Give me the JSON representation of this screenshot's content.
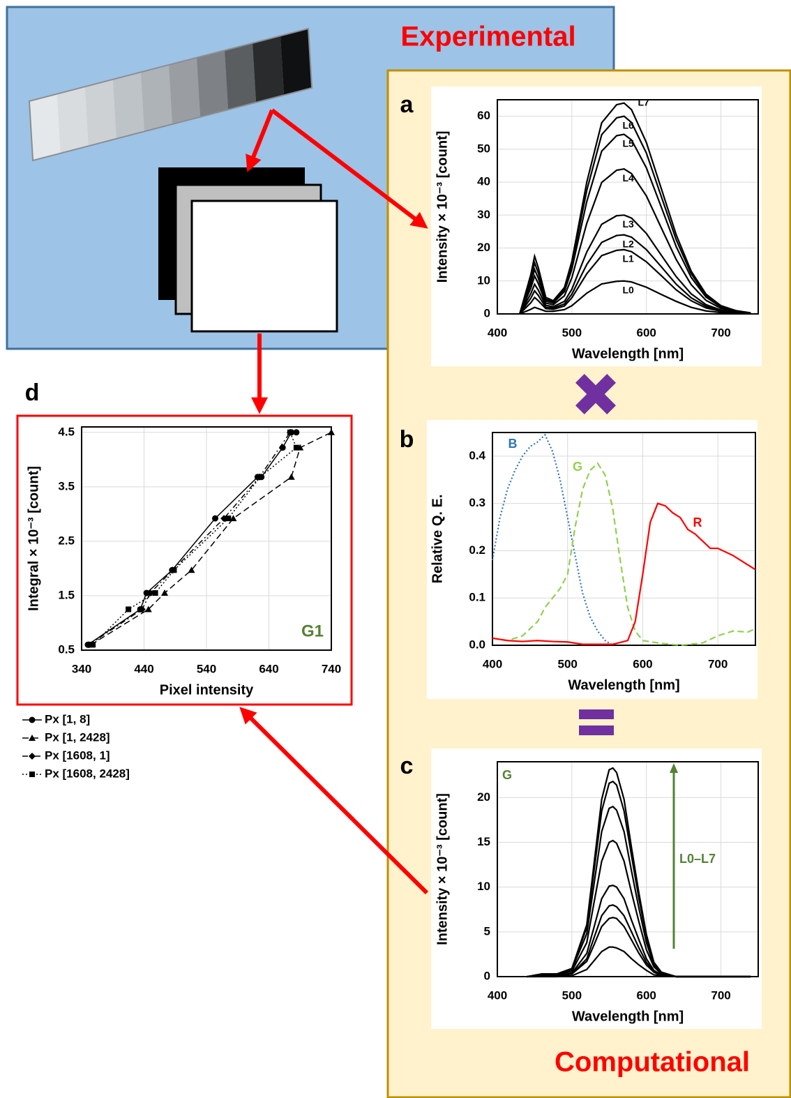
{
  "labels": {
    "experimental": "Experimental",
    "computational": "Computational",
    "panels": [
      "a",
      "b",
      "c",
      "d"
    ]
  },
  "chart_data": [
    {
      "type": "line",
      "xlabel": "Wavelength [nm]",
      "ylabel": "Intensity × 10⁻³ [count]",
      "xlim": [
        400,
        750
      ],
      "ylim": [
        0,
        65
      ],
      "xticks": [
        400,
        500,
        600,
        700
      ],
      "yticks": [
        0,
        10,
        20,
        30,
        40,
        50,
        60
      ],
      "grid": true,
      "x": [
        430,
        445,
        450,
        455,
        465,
        475,
        490,
        500,
        520,
        540,
        560,
        570,
        580,
        600,
        620,
        640,
        660,
        680,
        700,
        720,
        740
      ],
      "series": [
        {
          "name": "L0",
          "color": "#000000",
          "values": [
            0,
            1.4,
            2,
            1.6,
            0.8,
            0.8,
            1.3,
            2.5,
            6.3,
            9.1,
            9.9,
            10,
            9.7,
            8.1,
            5.9,
            3.8,
            2,
            0.9,
            0.4,
            0.2,
            0
          ]
        },
        {
          "name": "L1",
          "color": "#000000",
          "values": [
            0,
            3.4,
            5,
            4,
            1.6,
            1.4,
            2.4,
            4.9,
            12.2,
            17.7,
            19.3,
            19.5,
            18.9,
            15.8,
            11.6,
            7.3,
            4,
            1.8,
            0.8,
            0.3,
            0.1
          ]
        },
        {
          "name": "L2",
          "color": "#000000",
          "values": [
            0,
            4.8,
            7,
            5.6,
            2,
            1.8,
            3,
            6,
            15,
            21.7,
            23.8,
            24,
            23.3,
            19.5,
            14.3,
            9,
            4.9,
            2.3,
            0.9,
            0.4,
            0.1
          ]
        },
        {
          "name": "L3",
          "color": "#000000",
          "values": [
            0,
            6.2,
            9,
            7.2,
            2.6,
            2.2,
            3.8,
            7.5,
            18.8,
            27.2,
            29.8,
            30,
            29.1,
            24.4,
            17.8,
            11.3,
            6.1,
            2.8,
            1.2,
            0.5,
            0.2
          ]
        },
        {
          "name": "L4",
          "color": "#000000",
          "values": [
            0,
            7.9,
            11.5,
            9.2,
            3.3,
            2.8,
            5.5,
            11,
            27.5,
            39.9,
            43.6,
            44,
            42.6,
            35.8,
            26.1,
            16.5,
            8.9,
            4.1,
            1.7,
            0.7,
            0.2
          ]
        },
        {
          "name": "L5",
          "color": "#000000",
          "values": [
            0,
            9.3,
            13.5,
            10.8,
            3.9,
            3.3,
            6.8,
            13.6,
            34.1,
            49.4,
            54.1,
            54.5,
            52.8,
            44.3,
            32.4,
            20.4,
            11.1,
            5.1,
            2.1,
            0.9,
            0.3
          ]
        },
        {
          "name": "L6",
          "color": "#000000",
          "values": [
            0,
            10.6,
            15.5,
            12.4,
            4.4,
            3.7,
            7.5,
            15,
            37.5,
            54.4,
            59.5,
            60,
            58.1,
            48.8,
            35.6,
            22.5,
            12.2,
            5.6,
            2.3,
            1,
            0.3
          ]
        },
        {
          "name": "L7",
          "color": "#000000",
          "values": [
            0,
            12,
            17.5,
            14,
            5,
            4,
            8,
            16,
            40,
            58,
            63.5,
            64,
            62,
            52,
            38,
            24,
            13,
            6,
            2.5,
            1,
            0.3
          ]
        }
      ]
    },
    {
      "type": "line",
      "xlabel": "Wavelength [nm]",
      "ylabel": "Relative Q. E.",
      "xlim": [
        400,
        750
      ],
      "ylim": [
        0,
        0.45
      ],
      "xticks": [
        400,
        500,
        600,
        700
      ],
      "yticks": [
        {
          "value": 0,
          "label": "0.0"
        },
        0.1,
        0.2,
        0.3,
        0.4
      ],
      "grid": true,
      "series": [
        {
          "name": "B",
          "color": "#2e75b6",
          "dash": "dotted",
          "x": [
            400,
            410,
            420,
            430,
            440,
            450,
            460,
            470,
            480,
            490,
            500,
            510,
            520,
            530,
            540,
            550,
            560
          ],
          "values": [
            0.18,
            0.27,
            0.33,
            0.37,
            0.4,
            0.42,
            0.43,
            0.445,
            0.41,
            0.35,
            0.27,
            0.19,
            0.11,
            0.06,
            0.03,
            0.01,
            0
          ]
        },
        {
          "name": "G",
          "color": "#92d050",
          "dash": "dashed",
          "x": [
            400,
            420,
            440,
            460,
            470,
            480,
            490,
            500,
            510,
            520,
            530,
            540,
            550,
            560,
            570,
            580,
            590,
            600,
            620,
            650,
            680,
            700,
            720,
            740,
            750
          ],
          "values": [
            0.015,
            0.01,
            0.02,
            0.05,
            0.08,
            0.1,
            0.12,
            0.15,
            0.25,
            0.33,
            0.37,
            0.385,
            0.36,
            0.29,
            0.18,
            0.08,
            0.03,
            0.01,
            0.005,
            0,
            0.005,
            0.02,
            0.03,
            0.028,
            0.035
          ]
        },
        {
          "name": "R",
          "color": "#ff0000",
          "dash": "solid",
          "x": [
            400,
            420,
            440,
            460,
            480,
            500,
            520,
            540,
            560,
            580,
            590,
            600,
            610,
            620,
            630,
            640,
            650,
            660,
            670,
            680,
            690,
            700,
            720,
            740,
            750
          ],
          "values": [
            0.015,
            0.01,
            0.008,
            0.01,
            0.008,
            0.007,
            0.002,
            0.002,
            0.002,
            0.01,
            0.05,
            0.15,
            0.26,
            0.3,
            0.295,
            0.28,
            0.27,
            0.245,
            0.235,
            0.22,
            0.205,
            0.205,
            0.19,
            0.17,
            0.16
          ]
        }
      ]
    },
    {
      "type": "line",
      "xlabel": "Wavelength [nm]",
      "ylabel": "Intensity × 10⁻³ [count]",
      "xlim": [
        400,
        750
      ],
      "ylim": [
        0,
        24
      ],
      "xticks": [
        400,
        500,
        600,
        700
      ],
      "yticks": [
        0,
        5,
        10,
        15,
        20
      ],
      "grid": true,
      "annotations": [
        "G",
        "L0–L7"
      ],
      "annotation_color": "#548235",
      "x": [
        440,
        460,
        480,
        500,
        520,
        530,
        540,
        550,
        555,
        560,
        570,
        580,
        590,
        600,
        610,
        620,
        640,
        700,
        740
      ],
      "series": [
        {
          "color": "#000000",
          "values": [
            0,
            0,
            0,
            0.1,
            0.8,
            1.8,
            2.8,
            3.3,
            3.3,
            3.2,
            2.8,
            2,
            1.3,
            0.7,
            0.2,
            0.1,
            0,
            0,
            0
          ]
        },
        {
          "color": "#000000",
          "values": [
            0,
            0.1,
            0.1,
            0.3,
            1.7,
            3.6,
            5.6,
            6.5,
            6.6,
            6.5,
            5.6,
            4.1,
            2.6,
            1.3,
            0.5,
            0.1,
            0,
            0,
            0
          ]
        },
        {
          "color": "#000000",
          "values": [
            0,
            0.1,
            0.1,
            0.3,
            2,
            4.4,
            6.8,
            7.9,
            8,
            7.8,
            6.8,
            5,
            3.2,
            1.6,
            0.6,
            0.2,
            0,
            0,
            0
          ]
        },
        {
          "color": "#000000",
          "values": [
            0,
            0.1,
            0.1,
            0.4,
            2.6,
            5.6,
            8.7,
            10.1,
            10.2,
            10,
            8.7,
            6.3,
            4.1,
            2,
            0.7,
            0.2,
            0,
            0,
            0
          ]
        },
        {
          "color": "#000000",
          "values": [
            0,
            0.2,
            0.2,
            0.6,
            3.8,
            8.4,
            12.9,
            15,
            15.2,
            14.9,
            12.9,
            9.4,
            6.1,
            3,
            1.1,
            0.3,
            0,
            0,
            0
          ]
        },
        {
          "color": "#000000",
          "values": [
            0,
            0.2,
            0.2,
            0.8,
            4.8,
            10.5,
            16.2,
            18.8,
            19,
            18.6,
            16.2,
            11.8,
            7.6,
            3.8,
            1.3,
            0.4,
            0,
            0,
            0
          ]
        },
        {
          "color": "#000000",
          "values": [
            0,
            0.3,
            0.3,
            0.9,
            5.5,
            12,
            18.5,
            21.6,
            21.8,
            21.4,
            18.5,
            13.5,
            8.7,
            4.4,
            1.5,
            0.4,
            0,
            0,
            0
          ]
        },
        {
          "color": "#000000",
          "values": [
            0,
            0.3,
            0.3,
            0.9,
            5.8,
            12.8,
            19.8,
            23.1,
            23.3,
            22.8,
            19.8,
            14.4,
            9.3,
            4.7,
            1.6,
            0.5,
            0,
            0,
            0
          ]
        }
      ]
    },
    {
      "type": "line",
      "xlabel": "Pixel intensity",
      "ylabel": "Integral × 10⁻³ [count]",
      "xlim": [
        340,
        740
      ],
      "ylim": [
        0.5,
        4.6
      ],
      "xticks": [
        340,
        440,
        540,
        640,
        740
      ],
      "yticks": [
        0.5,
        1.5,
        2.5,
        3.5,
        4.5
      ],
      "grid": true,
      "legend": "below",
      "annotations": [
        "G1"
      ],
      "annotation_color": "#548235",
      "series": [
        {
          "name": "Px [1, 8]",
          "color": "#000000",
          "dash": "solid",
          "marker": "circle",
          "x": [
            350,
            434,
            444,
            485,
            554,
            622,
            628,
            662,
            676,
            684
          ],
          "values": [
            0.6,
            1.25,
            1.55,
            1.97,
            2.92,
            3.68,
            3.68,
            4.22,
            4.5,
            4.5
          ]
        },
        {
          "name": "Px [1, 2428]",
          "color": "#000000",
          "dash": "dashed",
          "marker": "triangle",
          "x": [
            355,
            447,
            473,
            516,
            583,
            676,
            690,
            740
          ],
          "values": [
            0.6,
            1.25,
            1.55,
            1.97,
            2.92,
            3.68,
            4.22,
            4.5
          ]
        },
        {
          "name": "Px [1608, 1]",
          "color": "#000000",
          "dash": "dashdot",
          "marker": "diamond",
          "x": [
            352,
            437,
            450,
            486,
            568,
            625,
            674
          ],
          "values": [
            0.6,
            1.25,
            1.55,
            1.97,
            2.92,
            3.68,
            4.5
          ]
        },
        {
          "name": "Px [1608, 2428]",
          "color": "#000000",
          "dash": "dotted",
          "marker": "square",
          "x": [
            358,
            415,
            458,
            488,
            575,
            626,
            684,
            674
          ],
          "values": [
            0.6,
            1.25,
            1.55,
            1.97,
            2.92,
            3.68,
            4.22,
            4.5
          ]
        }
      ]
    }
  ]
}
